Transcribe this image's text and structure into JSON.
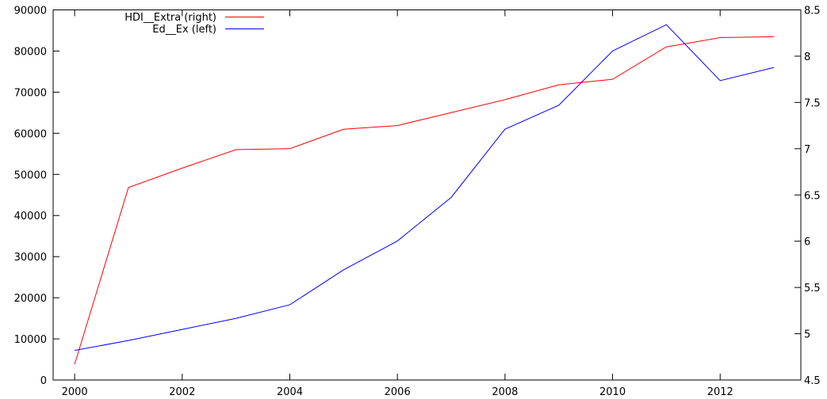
{
  "chart_data": {
    "type": "line",
    "x": [
      2000,
      2001,
      2002,
      2003,
      2004,
      2005,
      2006,
      2007,
      2008,
      2009,
      2010,
      2011,
      2012,
      2013
    ],
    "x_ticks": [
      "2000",
      "2002",
      "2004",
      "2006",
      "2008",
      "2010",
      "2012"
    ],
    "xlim": [
      1999.6,
      2013.5
    ],
    "y_left_ticks": [
      "0",
      "10000",
      "20000",
      "30000",
      "40000",
      "50000",
      "60000",
      "70000",
      "80000",
      "90000"
    ],
    "ylim_left": [
      0,
      90000
    ],
    "y_right_ticks": [
      "4.5",
      "5",
      "5.5",
      "6",
      "6.5",
      "7",
      "7.5",
      "8",
      "8.5"
    ],
    "ylim_right": [
      4.5,
      8.5
    ],
    "series": [
      {
        "name": "HDI__Extra (right)",
        "axis": "right",
        "color": "#ff0000",
        "values": [
          4.67,
          6.58,
          6.79,
          6.99,
          7.0,
          7.21,
          7.25,
          7.39,
          7.53,
          7.69,
          7.75,
          8.1,
          8.2,
          8.21
        ]
      },
      {
        "name": "Ed__Ex (left)",
        "axis": "left",
        "color": "#0000ff",
        "values": [
          7200,
          9600,
          12300,
          15000,
          18300,
          26800,
          33800,
          44400,
          61000,
          66800,
          80000,
          86400,
          72800,
          76000
        ]
      }
    ],
    "legend": "top-left",
    "grid": false
  }
}
